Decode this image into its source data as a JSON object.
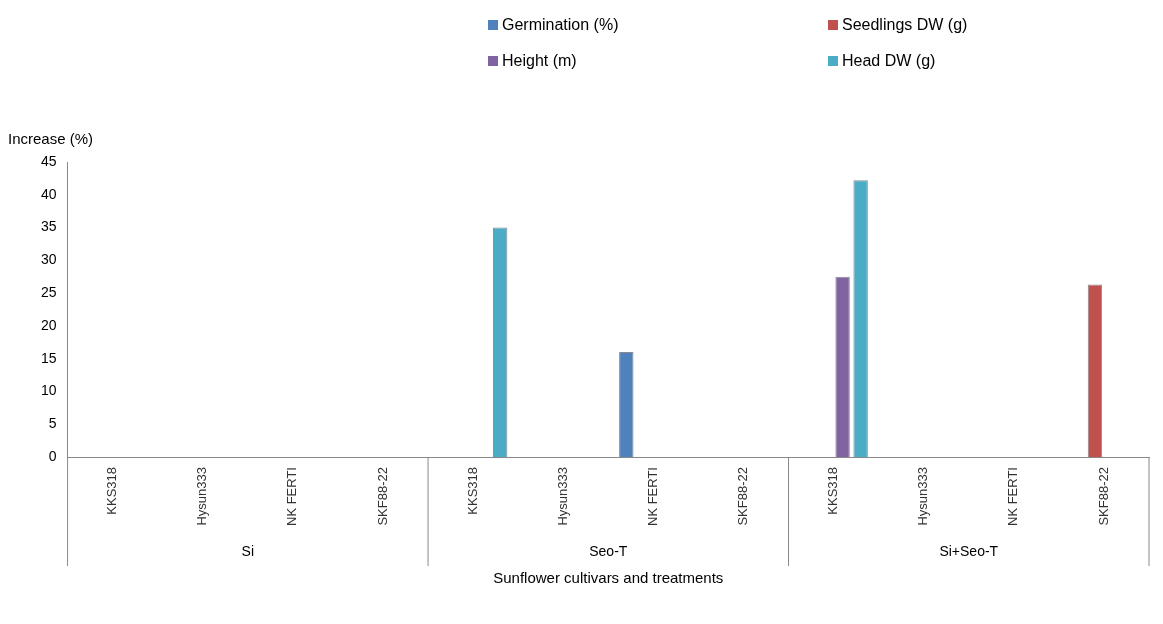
{
  "chart_data": {
    "type": "bar",
    "ylabel": "Increase (%)",
    "xlabel": "Sunflower cultivars and treatments",
    "categories": [
      "KKS318",
      "Hysun333",
      "NK FERTI",
      "SKF88-22",
      "KKS318",
      "Hysun333",
      "NK FERTI",
      "SKF88-22",
      "KKS318",
      "Hysun333",
      "NK FERTI",
      "SKF88-22"
    ],
    "annotations": [
      "Si",
      "Seo-T",
      "Si+Seo-T"
    ],
    "series": [
      {
        "name": "Germination (%)",
        "color": "#4f81bd",
        "values": [
          0,
          0,
          0,
          0,
          0,
          0,
          16,
          0,
          0,
          0,
          0,
          0
        ]
      },
      {
        "name": "Seedlings DW (g)",
        "color": "#c0504d",
        "values": [
          0,
          0,
          0,
          0,
          0,
          0,
          0,
          0,
          0,
          0,
          0,
          26.3
        ]
      },
      {
        "name": "Height (m)",
        "color": "#8064a2",
        "values": [
          0,
          0,
          0,
          0,
          0,
          0,
          0,
          0,
          27.5,
          0,
          0,
          0
        ]
      },
      {
        "name": "Head DW (g)",
        "color": "#4bacc6",
        "values": [
          0,
          0,
          0,
          0,
          35,
          0,
          0,
          0,
          42.2,
          0,
          0,
          0
        ]
      }
    ],
    "ylim": [
      0,
      45
    ],
    "yticks": [
      0,
      5,
      10,
      15,
      20,
      25,
      30,
      35,
      40,
      45
    ],
    "grid": false,
    "legend": "top"
  }
}
